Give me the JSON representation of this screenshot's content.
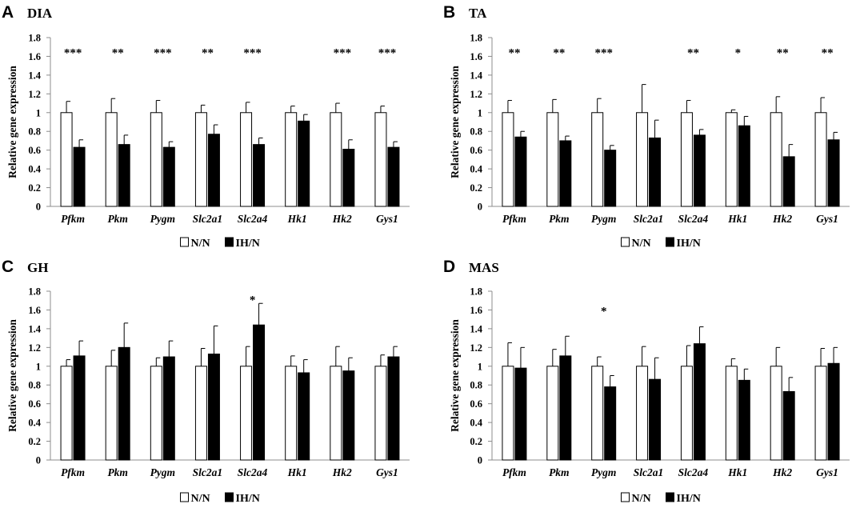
{
  "figure": {
    "legend": {
      "nn": "N/N",
      "ihn": "IH/N"
    },
    "colors": {
      "nn_fill": "#ffffff",
      "ihn_fill": "#000000",
      "stroke": "#000000",
      "axis": "#8c8c8c"
    }
  },
  "chart_data": [
    {
      "type": "bar",
      "panel": "A",
      "title": "DIA",
      "ylabel": "Relative gene expression",
      "ylim": [
        0,
        1.8
      ],
      "yticks": [
        "0",
        "0.2",
        "0.4",
        "0.6",
        "0.8",
        "1",
        "1.2",
        "1.4",
        "1.6",
        "1.8"
      ],
      "categories": [
        "Pfkm",
        "Pkm",
        "Pygm",
        "Slc2a1",
        "Slc2a4",
        "Hk1",
        "Hk2",
        "Gys1"
      ],
      "series": [
        {
          "name": "N/N",
          "values": [
            1.0,
            1.0,
            1.0,
            1.0,
            1.0,
            1.0,
            1.0,
            1.0
          ],
          "errors": [
            0.12,
            0.15,
            0.13,
            0.08,
            0.11,
            0.07,
            0.1,
            0.07
          ]
        },
        {
          "name": "IH/N",
          "values": [
            0.63,
            0.66,
            0.63,
            0.77,
            0.66,
            0.91,
            0.61,
            0.63
          ],
          "errors": [
            0.08,
            0.1,
            0.06,
            0.1,
            0.07,
            0.07,
            0.1,
            0.06
          ]
        }
      ],
      "significance": [
        "***",
        "**",
        "***",
        "**",
        "***",
        "",
        "***",
        "***"
      ],
      "sig_y": 1.65,
      "legend": [
        "N/N",
        "IH/N"
      ]
    },
    {
      "type": "bar",
      "panel": "B",
      "title": "TA",
      "ylabel": "Relative gene expression",
      "ylim": [
        0,
        1.8
      ],
      "yticks": [
        "0",
        "0.2",
        "0.4",
        "0.6",
        "0.8",
        "1",
        "1.2",
        "1.4",
        "1.6",
        "1.8"
      ],
      "categories": [
        "Pfkm",
        "Pkm",
        "Pygm",
        "Slc2a1",
        "Slc2a4",
        "Hk1",
        "Hk2",
        "Gys1"
      ],
      "series": [
        {
          "name": "N/N",
          "values": [
            1.0,
            1.0,
            1.0,
            1.0,
            1.0,
            1.0,
            1.0,
            1.0
          ],
          "errors": [
            0.13,
            0.14,
            0.15,
            0.3,
            0.13,
            0.03,
            0.17,
            0.16
          ]
        },
        {
          "name": "IH/N",
          "values": [
            0.74,
            0.7,
            0.6,
            0.73,
            0.76,
            0.86,
            0.53,
            0.71
          ],
          "errors": [
            0.06,
            0.05,
            0.05,
            0.19,
            0.06,
            0.1,
            0.13,
            0.08
          ]
        }
      ],
      "significance": [
        "**",
        "**",
        "***",
        "",
        "**",
        "*",
        "**",
        "**"
      ],
      "sig_y": 1.65,
      "legend": [
        "N/N",
        "IH/N"
      ]
    },
    {
      "type": "bar",
      "panel": "C",
      "title": "GH",
      "ylabel": "Relative gene expression",
      "ylim": [
        0,
        1.8
      ],
      "yticks": [
        "0",
        "0.2",
        "0.4",
        "0.6",
        "0.8",
        "1",
        "1.2",
        "1.4",
        "1.6",
        "1.8"
      ],
      "categories": [
        "Pfkm",
        "Pkm",
        "Pygm",
        "Slc2a1",
        "Slc2a4",
        "Hk1",
        "Hk2",
        "Gys1"
      ],
      "series": [
        {
          "name": "N/N",
          "values": [
            1.0,
            1.0,
            1.0,
            1.0,
            1.0,
            1.0,
            1.0,
            1.0
          ],
          "errors": [
            0.07,
            0.17,
            0.09,
            0.19,
            0.21,
            0.11,
            0.21,
            0.12
          ]
        },
        {
          "name": "IH/N",
          "values": [
            1.11,
            1.2,
            1.1,
            1.13,
            1.44,
            0.93,
            0.95,
            1.1
          ],
          "errors": [
            0.16,
            0.26,
            0.17,
            0.3,
            0.23,
            0.14,
            0.14,
            0.11
          ]
        }
      ],
      "significance": [
        "",
        "",
        "",
        "",
        "*",
        "",
        "",
        ""
      ],
      "sig_y": 1.72,
      "legend": [
        "N/N",
        "IH/N"
      ]
    },
    {
      "type": "bar",
      "panel": "D",
      "title": "MAS",
      "ylabel": "Relative gene expression",
      "ylim": [
        0,
        1.8
      ],
      "yticks": [
        "0",
        "0.2",
        "0.4",
        "0.6",
        "0.8",
        "1",
        "1.2",
        "1.4",
        "1.6",
        "1.8"
      ],
      "categories": [
        "Pfkm",
        "Pkm",
        "Pygm",
        "Slc2a1",
        "Slc2a4",
        "Hk1",
        "Hk2",
        "Gys1"
      ],
      "series": [
        {
          "name": "N/N",
          "values": [
            1.0,
            1.0,
            1.0,
            1.0,
            1.0,
            1.0,
            1.0,
            1.0
          ],
          "errors": [
            0.25,
            0.18,
            0.1,
            0.21,
            0.22,
            0.08,
            0.2,
            0.19
          ]
        },
        {
          "name": "IH/N",
          "values": [
            0.98,
            1.11,
            0.78,
            0.86,
            1.24,
            0.85,
            0.73,
            1.03
          ],
          "errors": [
            0.22,
            0.21,
            0.12,
            0.23,
            0.18,
            0.12,
            0.15,
            0.17
          ]
        }
      ],
      "significance": [
        "",
        "",
        "*",
        "",
        "",
        "",
        "",
        ""
      ],
      "sig_y": 1.6,
      "legend": [
        "N/N",
        "IH/N"
      ]
    }
  ]
}
